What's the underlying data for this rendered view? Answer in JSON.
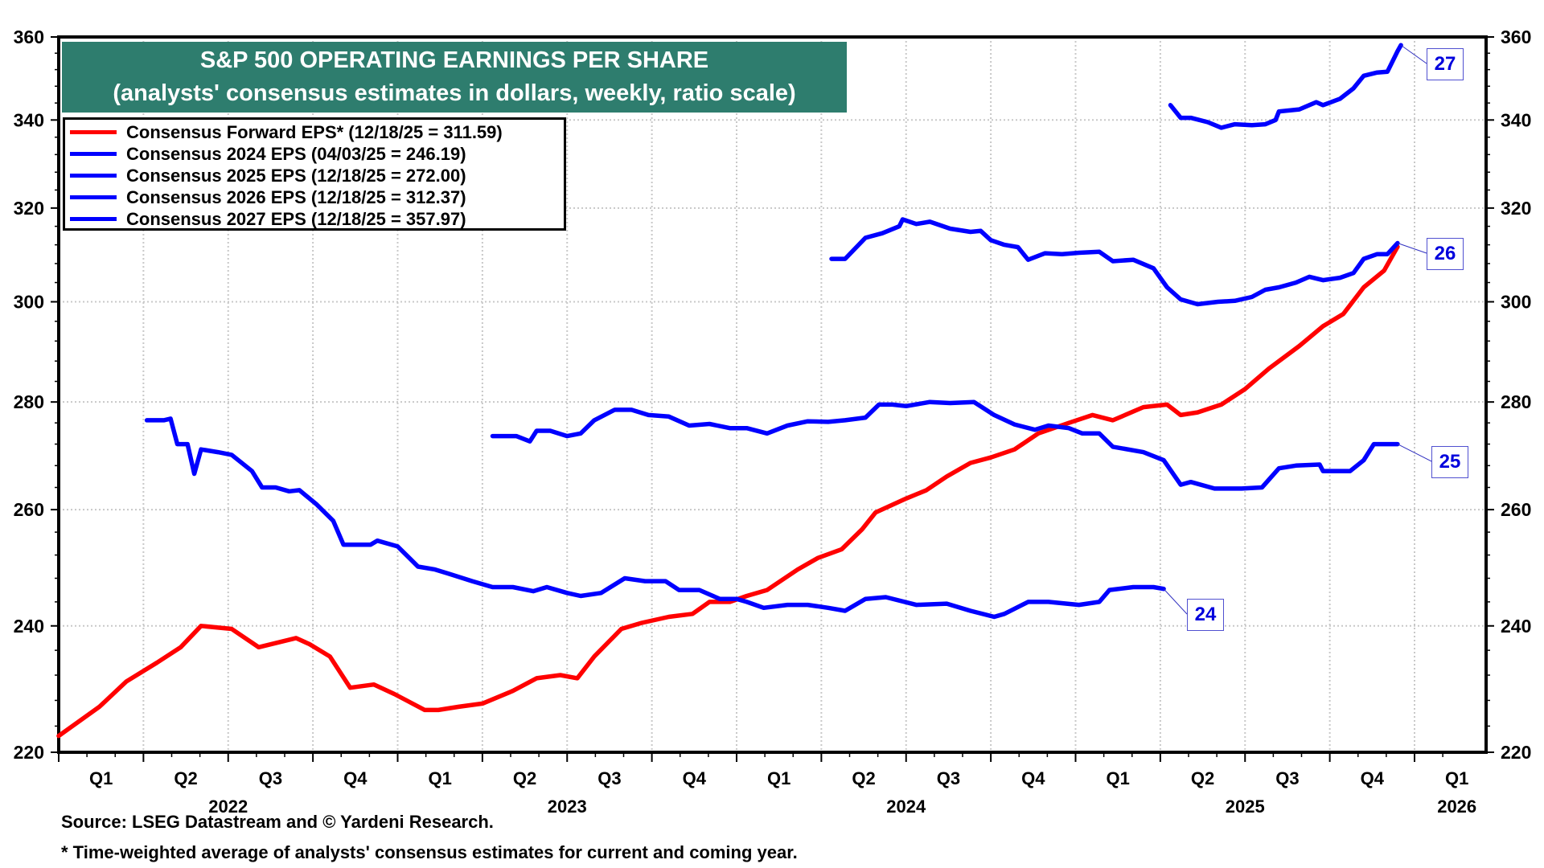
{
  "chart_data": {
    "type": "line",
    "title": "S&P 500 OPERATING EARNINGS PER SHARE",
    "subtitle": "(analysts' consensus estimates in dollars, weekly, ratio scale)",
    "xlabel": "",
    "ylabel": "",
    "y_scale": "log",
    "ylim": [
      220,
      360
    ],
    "xlim": [
      2022.0,
      2026.1
    ],
    "y_ticks": [
      220,
      240,
      260,
      280,
      300,
      320,
      340,
      360
    ],
    "x_quarter_labels": [
      {
        "label": "Q1",
        "x": 2022.125
      },
      {
        "label": "Q2",
        "x": 2022.375
      },
      {
        "label": "Q3",
        "x": 2022.625
      },
      {
        "label": "Q4",
        "x": 2022.875
      },
      {
        "label": "Q1",
        "x": 2023.125
      },
      {
        "label": "Q2",
        "x": 2023.375
      },
      {
        "label": "Q3",
        "x": 2023.625
      },
      {
        "label": "Q4",
        "x": 2023.875
      },
      {
        "label": "Q1",
        "x": 2024.125
      },
      {
        "label": "Q2",
        "x": 2024.375
      },
      {
        "label": "Q3",
        "x": 2024.625
      },
      {
        "label": "Q4",
        "x": 2024.875
      },
      {
        "label": "Q1",
        "x": 2025.125
      },
      {
        "label": "Q2",
        "x": 2025.375
      },
      {
        "label": "Q3",
        "x": 2025.625
      },
      {
        "label": "Q4",
        "x": 2025.875
      },
      {
        "label": "Q1",
        "x": 2026.125
      }
    ],
    "x_year_labels": [
      {
        "label": "2022",
        "x": 2022.5
      },
      {
        "label": "2023",
        "x": 2023.5
      },
      {
        "label": "2024",
        "x": 2024.5
      },
      {
        "label": "2025",
        "x": 2025.5
      },
      {
        "label": "2026",
        "x": 2026.125
      }
    ],
    "grid": true,
    "legend_position": "top-left",
    "series": [
      {
        "name": "Consensus Forward EPS* (12/18/25 = 311.59)",
        "color": "#ff0000",
        "end_tag": "",
        "points": [
          [
            2022.0,
            222.5
          ],
          [
            2022.12,
            227.0
          ],
          [
            2022.2,
            231.0
          ],
          [
            2022.29,
            234.0
          ],
          [
            2022.36,
            236.5
          ],
          [
            2022.42,
            240.0
          ],
          [
            2022.51,
            239.5
          ],
          [
            2022.59,
            236.5
          ],
          [
            2022.7,
            238.0
          ],
          [
            2022.74,
            237.0
          ],
          [
            2022.8,
            235.0
          ],
          [
            2022.86,
            230.0
          ],
          [
            2022.93,
            230.5
          ],
          [
            2022.99,
            229.0
          ],
          [
            2023.08,
            226.5
          ],
          [
            2023.12,
            226.5
          ],
          [
            2023.18,
            227.0
          ],
          [
            2023.25,
            227.5
          ],
          [
            2023.34,
            229.5
          ],
          [
            2023.41,
            231.5
          ],
          [
            2023.48,
            232.0
          ],
          [
            2023.53,
            231.5
          ],
          [
            2023.58,
            235.0
          ],
          [
            2023.66,
            239.5
          ],
          [
            2023.72,
            240.5
          ],
          [
            2023.8,
            241.5
          ],
          [
            2023.87,
            242.0
          ],
          [
            2023.92,
            244.0
          ],
          [
            2023.98,
            244.0
          ],
          [
            2024.03,
            245.0
          ],
          [
            2024.09,
            246.0
          ],
          [
            2024.18,
            249.5
          ],
          [
            2024.24,
            251.5
          ],
          [
            2024.31,
            253.0
          ],
          [
            2024.37,
            256.5
          ],
          [
            2024.41,
            259.5
          ],
          [
            2024.5,
            262.0
          ],
          [
            2024.56,
            263.5
          ],
          [
            2024.62,
            266.0
          ],
          [
            2024.69,
            268.5
          ],
          [
            2024.75,
            269.5
          ],
          [
            2024.82,
            271.0
          ],
          [
            2024.89,
            274.0
          ],
          [
            2024.98,
            276.0
          ],
          [
            2025.05,
            277.5
          ],
          [
            2025.11,
            276.5
          ],
          [
            2025.2,
            279.0
          ],
          [
            2025.27,
            279.5
          ],
          [
            2025.31,
            277.5
          ],
          [
            2025.36,
            278.0
          ],
          [
            2025.43,
            279.5
          ],
          [
            2025.5,
            282.5
          ],
          [
            2025.57,
            286.5
          ],
          [
            2025.66,
            291.0
          ],
          [
            2025.73,
            295.0
          ],
          [
            2025.79,
            297.5
          ],
          [
            2025.85,
            303.0
          ],
          [
            2025.91,
            306.5
          ],
          [
            2025.95,
            311.59
          ]
        ]
      },
      {
        "name": "Consensus 2024 EPS (04/03/25 = 246.19)",
        "color": "#0000ff",
        "end_tag": "24",
        "points": [
          [
            2022.26,
            276.5
          ],
          [
            2022.31,
            276.5
          ],
          [
            2022.33,
            276.8
          ],
          [
            2022.35,
            272.0
          ],
          [
            2022.38,
            272.0
          ],
          [
            2022.4,
            266.5
          ],
          [
            2022.42,
            271.0
          ],
          [
            2022.47,
            270.5
          ],
          [
            2022.51,
            270.0
          ],
          [
            2022.57,
            267.0
          ],
          [
            2022.6,
            264.0
          ],
          [
            2022.64,
            264.0
          ],
          [
            2022.68,
            263.3
          ],
          [
            2022.71,
            263.5
          ],
          [
            2022.76,
            261.0
          ],
          [
            2022.81,
            258.0
          ],
          [
            2022.84,
            253.8
          ],
          [
            2022.92,
            253.8
          ],
          [
            2022.94,
            254.5
          ],
          [
            2023.0,
            253.5
          ],
          [
            2023.06,
            250.0
          ],
          [
            2023.11,
            249.5
          ],
          [
            2023.15,
            248.8
          ],
          [
            2023.22,
            247.5
          ],
          [
            2023.28,
            246.5
          ],
          [
            2023.34,
            246.5
          ],
          [
            2023.4,
            245.8
          ],
          [
            2023.44,
            246.5
          ],
          [
            2023.5,
            245.5
          ],
          [
            2023.54,
            245.0
          ],
          [
            2023.6,
            245.5
          ],
          [
            2023.67,
            248.0
          ],
          [
            2023.73,
            247.5
          ],
          [
            2023.79,
            247.5
          ],
          [
            2023.83,
            246.0
          ],
          [
            2023.89,
            246.0
          ],
          [
            2023.95,
            244.5
          ],
          [
            2024.0,
            244.5
          ],
          [
            2024.03,
            244.0
          ],
          [
            2024.08,
            243.0
          ],
          [
            2024.15,
            243.5
          ],
          [
            2024.21,
            243.5
          ],
          [
            2024.27,
            243.0
          ],
          [
            2024.32,
            242.5
          ],
          [
            2024.38,
            244.5
          ],
          [
            2024.44,
            244.8
          ],
          [
            2024.53,
            243.5
          ],
          [
            2024.62,
            243.7
          ],
          [
            2024.69,
            242.5
          ],
          [
            2024.76,
            241.5
          ],
          [
            2024.79,
            242.0
          ],
          [
            2024.86,
            244.0
          ],
          [
            2024.92,
            244.0
          ],
          [
            2025.01,
            243.5
          ],
          [
            2025.07,
            244.0
          ],
          [
            2025.1,
            246.0
          ],
          [
            2025.17,
            246.5
          ],
          [
            2025.23,
            246.5
          ],
          [
            2025.26,
            246.19
          ]
        ]
      },
      {
        "name": "Consensus 2025 EPS (12/18/25 = 272.00)",
        "color": "#0000ff",
        "end_tag": "25",
        "points": [
          [
            2023.28,
            273.5
          ],
          [
            2023.35,
            273.5
          ],
          [
            2023.39,
            272.5
          ],
          [
            2023.41,
            274.5
          ],
          [
            2023.45,
            274.5
          ],
          [
            2023.5,
            273.5
          ],
          [
            2023.54,
            274.0
          ],
          [
            2023.58,
            276.5
          ],
          [
            2023.64,
            278.5
          ],
          [
            2023.69,
            278.5
          ],
          [
            2023.74,
            277.5
          ],
          [
            2023.8,
            277.2
          ],
          [
            2023.86,
            275.5
          ],
          [
            2023.92,
            275.8
          ],
          [
            2023.98,
            275.0
          ],
          [
            2024.03,
            275.0
          ],
          [
            2024.09,
            274.0
          ],
          [
            2024.15,
            275.5
          ],
          [
            2024.21,
            276.3
          ],
          [
            2024.27,
            276.2
          ],
          [
            2024.32,
            276.5
          ],
          [
            2024.38,
            277.0
          ],
          [
            2024.42,
            279.5
          ],
          [
            2024.46,
            279.5
          ],
          [
            2024.5,
            279.2
          ],
          [
            2024.57,
            280.0
          ],
          [
            2024.63,
            279.8
          ],
          [
            2024.7,
            280.0
          ],
          [
            2024.76,
            277.5
          ],
          [
            2024.82,
            275.7
          ],
          [
            2024.88,
            274.7
          ],
          [
            2024.92,
            275.5
          ],
          [
            2024.98,
            275.0
          ],
          [
            2025.02,
            274.0
          ],
          [
            2025.07,
            274.0
          ],
          [
            2025.11,
            271.5
          ],
          [
            2025.2,
            270.5
          ],
          [
            2025.26,
            269.0
          ],
          [
            2025.31,
            264.5
          ],
          [
            2025.34,
            265.0
          ],
          [
            2025.41,
            263.8
          ],
          [
            2025.49,
            263.8
          ],
          [
            2025.55,
            264.0
          ],
          [
            2025.6,
            267.5
          ],
          [
            2025.65,
            268.0
          ],
          [
            2025.72,
            268.2
          ],
          [
            2025.73,
            267.0
          ],
          [
            2025.81,
            267.0
          ],
          [
            2025.85,
            269.0
          ],
          [
            2025.88,
            272.0
          ],
          [
            2025.95,
            272.0
          ]
        ]
      },
      {
        "name": "Consensus 2026 EPS (12/18/25 = 312.37)",
        "color": "#0000ff",
        "end_tag": "26",
        "points": [
          [
            2024.28,
            309.0
          ],
          [
            2024.32,
            309.0
          ],
          [
            2024.38,
            313.5
          ],
          [
            2024.43,
            314.5
          ],
          [
            2024.48,
            316.0
          ],
          [
            2024.49,
            317.5
          ],
          [
            2024.53,
            316.5
          ],
          [
            2024.57,
            317.0
          ],
          [
            2024.63,
            315.5
          ],
          [
            2024.69,
            314.8
          ],
          [
            2024.72,
            315.0
          ],
          [
            2024.75,
            313.0
          ],
          [
            2024.79,
            312.0
          ],
          [
            2024.83,
            311.5
          ],
          [
            2024.86,
            308.8
          ],
          [
            2024.91,
            310.2
          ],
          [
            2024.96,
            310.0
          ],
          [
            2025.01,
            310.3
          ],
          [
            2025.07,
            310.5
          ],
          [
            2025.11,
            308.5
          ],
          [
            2025.17,
            308.8
          ],
          [
            2025.23,
            307.0
          ],
          [
            2025.27,
            303.0
          ],
          [
            2025.31,
            300.5
          ],
          [
            2025.36,
            299.5
          ],
          [
            2025.42,
            300.0
          ],
          [
            2025.47,
            300.2
          ],
          [
            2025.52,
            301.0
          ],
          [
            2025.56,
            302.5
          ],
          [
            2025.6,
            303.0
          ],
          [
            2025.65,
            304.0
          ],
          [
            2025.69,
            305.2
          ],
          [
            2025.73,
            304.5
          ],
          [
            2025.78,
            305.0
          ],
          [
            2025.82,
            306.0
          ],
          [
            2025.85,
            309.0
          ],
          [
            2025.89,
            310.0
          ],
          [
            2025.92,
            310.0
          ],
          [
            2025.95,
            312.37
          ]
        ]
      },
      {
        "name": "Consensus 2027 EPS (12/18/25 = 357.97)",
        "color": "#0000ff",
        "end_tag": "27",
        "points": [
          [
            2025.28,
            343.5
          ],
          [
            2025.31,
            340.5
          ],
          [
            2025.34,
            340.5
          ],
          [
            2025.39,
            339.5
          ],
          [
            2025.43,
            338.2
          ],
          [
            2025.47,
            339.0
          ],
          [
            2025.52,
            338.8
          ],
          [
            2025.56,
            339.0
          ],
          [
            2025.59,
            340.0
          ],
          [
            2025.6,
            342.0
          ],
          [
            2025.66,
            342.5
          ],
          [
            2025.71,
            344.2
          ],
          [
            2025.73,
            343.5
          ],
          [
            2025.78,
            345.0
          ],
          [
            2025.82,
            347.5
          ],
          [
            2025.85,
            350.5
          ],
          [
            2025.89,
            351.3
          ],
          [
            2025.92,
            351.5
          ],
          [
            2025.95,
            356.5
          ],
          [
            2025.96,
            357.97
          ]
        ]
      }
    ]
  },
  "footer": {
    "source": "Source: LSEG Datastream and © Yardeni Research.",
    "note": "* Time-weighted average of analysts' consensus estimates for current and coming year."
  }
}
